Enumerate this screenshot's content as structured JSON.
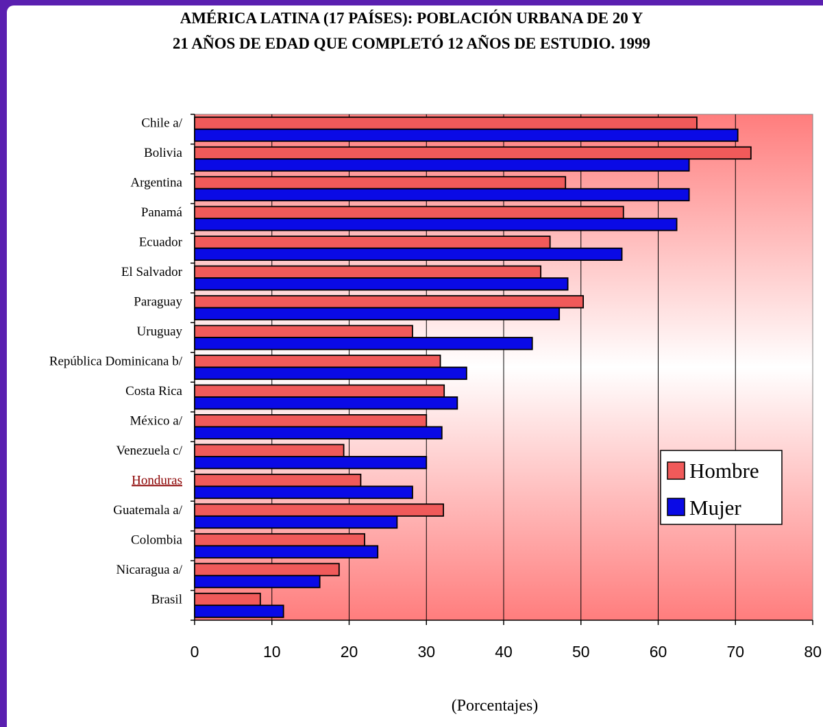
{
  "colors": {
    "hombre": "#f05a5a",
    "mujer": "#0a0ae6",
    "frame_bg": "#5a1fb0",
    "highlight_label": "#8b0000"
  },
  "chart_data": {
    "type": "bar",
    "orientation": "horizontal",
    "title_line1": "AMÉRICA LATINA (17 PAÍSES):  POBLACIÓN URBANA DE 20 Y",
    "title_line2": "21 AÑOS DE EDAD QUE COMPLETÓ 12 AÑOS DE ESTUDIO. 1999",
    "xlabel": "(Porcentajes)",
    "ylabel": "",
    "xlim": [
      0,
      80
    ],
    "xticks": [
      "0",
      "10",
      "20",
      "30",
      "40",
      "50",
      "60",
      "70",
      "80"
    ],
    "grid": true,
    "legend_position": "right",
    "categories": [
      "Chile a/",
      "Bolivia",
      "Argentina",
      "Panamá",
      "Ecuador",
      "El Salvador",
      "Paraguay",
      "Uruguay",
      "República Dominicana b/",
      "Costa Rica",
      "México a/",
      "Venezuela c/",
      "Honduras",
      "Guatemala a/",
      "Colombia",
      "Nicaragua a/",
      "Brasil"
    ],
    "highlighted_category": "Honduras",
    "series": [
      {
        "name": "Hombre",
        "values": [
          65,
          72,
          48,
          55.5,
          46,
          44.8,
          50.3,
          28.2,
          31.8,
          32.3,
          30,
          19.3,
          21.5,
          32.2,
          22,
          18.7,
          8.5
        ]
      },
      {
        "name": "Mujer",
        "values": [
          70.3,
          64,
          64,
          62.4,
          55.3,
          48.3,
          47.2,
          43.7,
          35.2,
          34,
          32,
          30,
          28.2,
          26.2,
          23.7,
          16.2,
          11.5
        ]
      }
    ]
  }
}
